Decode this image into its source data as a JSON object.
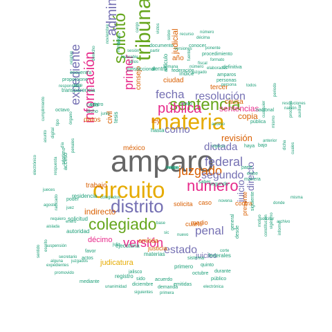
{
  "palette": {
    "green": "#1b9e77",
    "orange": "#d95f02",
    "purple": "#7570b3",
    "pink": "#e7298a",
    "lime": "#66a61e",
    "gold": "#e6ab02",
    "brown": "#a6761d",
    "gray": "#666666"
  },
  "words": [
    {
      "text": "amparo",
      "color": "gray"
    },
    {
      "text": "circuito",
      "color": "gold"
    },
    {
      "text": "materia",
      "color": "gold"
    },
    {
      "text": "tribunal",
      "color": "lime"
    },
    {
      "text": "sentencia",
      "color": "lime"
    },
    {
      "text": "distrito",
      "color": "purple"
    },
    {
      "text": "colegiado",
      "color": "lime"
    },
    {
      "text": "pública",
      "color": "pink"
    },
    {
      "text": "juzgado",
      "color": "orange"
    },
    {
      "text": "número",
      "color": "pink"
    },
    {
      "text": "solicitó",
      "color": "lime"
    },
    {
      "text": "información",
      "color": "pink"
    },
    {
      "text": "administrativa",
      "color": "purple"
    },
    {
      "text": "expediente",
      "color": "purple"
    },
    {
      "text": "versión",
      "color": "pink"
    },
    {
      "text": "primer",
      "color": "pink"
    },
    {
      "text": "fecha",
      "color": "purple"
    },
    {
      "text": "federal",
      "color": "purple"
    },
    {
      "text": "estado",
      "color": "purple"
    },
    {
      "text": "penal",
      "color": "purple"
    },
    {
      "text": "resolución",
      "color": "purple"
    },
    {
      "text": "segundo",
      "color": "purple"
    },
    {
      "text": "dictada",
      "color": "purple"
    },
    {
      "text": "como",
      "color": "purple"
    },
    {
      "text": "juicio",
      "color": "purple"
    },
    {
      "text": "directo",
      "color": "purple"
    },
    {
      "text": "revisión",
      "color": "orange"
    },
    {
      "text": "copia",
      "color": "orange"
    },
    {
      "text": "sentencias",
      "color": "pink"
    },
    {
      "text": "indirecto",
      "color": "orange"
    },
    {
      "text": "judicial",
      "color": "orange"
    },
    {
      "text": "juicios",
      "color": "purple"
    },
    {
      "text": "civil",
      "color": "orange"
    },
    {
      "text": "décimo",
      "color": "pink"
    },
    {
      "text": "judicatura",
      "color": "gold"
    },
    {
      "text": "méxico",
      "color": "orange"
    },
    {
      "text": "datos",
      "color": "orange"
    },
    {
      "text": "trabajo",
      "color": "orange"
    },
    {
      "text": "consejo",
      "color": "orange"
    },
    {
      "text": "ciudad",
      "color": "orange"
    },
    {
      "text": "año",
      "color": "orange"
    },
    {
      "text": "tercer",
      "color": "orange"
    },
    {
      "text": "causa",
      "color": "orange"
    },
    {
      "text": "ley",
      "color": "orange"
    },
    {
      "text": "caso",
      "color": "orange"
    },
    {
      "text": "contra",
      "color": "orange"
    },
    {
      "text": "solicita",
      "color": "orange"
    },
    {
      "text": "medio",
      "color": "orange"
    },
    {
      "text": "presente",
      "color": "orange"
    },
    {
      "text": "justicia",
      "color": "orange"
    },
    {
      "text": "cuarto",
      "color": "orange"
    },
    {
      "text": "emitida",
      "color": "orange"
    },
    {
      "text": "dentro",
      "color": "green"
    },
    {
      "text": "artículo",
      "color": "green"
    },
    {
      "text": "índice",
      "color": "green"
    },
    {
      "text": "cada",
      "color": "green"
    },
    {
      "text": "tesis",
      "color": "green"
    },
    {
      "text": "transparencia",
      "color": "green"
    },
    {
      "text": "acceso",
      "color": "green"
    },
    {
      "text": "residencia",
      "color": "green"
    },
    {
      "text": "solicitud",
      "color": "green"
    },
    {
      "text": "autoridad",
      "color": "green"
    },
    {
      "text": "ejecutoria",
      "color": "green"
    },
    {
      "text": "materias",
      "color": "green"
    },
    {
      "text": "registro",
      "color": "green"
    },
    {
      "text": "federales",
      "color": "green"
    },
    {
      "text": "primero",
      "color": "green"
    },
    {
      "text": "hasta",
      "color": "green"
    },
    {
      "text": "segundo",
      "color": "green"
    },
    {
      "text": "saber",
      "color": "green"
    },
    {
      "text": "haya",
      "color": "green"
    },
    {
      "text": "parte",
      "color": "green"
    },
    {
      "text": "manera",
      "color": "green"
    },
    {
      "text": "entre",
      "color": "green"
    },
    {
      "text": "bajo",
      "color": "green"
    },
    {
      "text": "siguiente",
      "color": "green"
    },
    {
      "text": "general",
      "color": "green"
    },
    {
      "text": "desde",
      "color": "green"
    },
    {
      "text": "sistema",
      "color": "green"
    },
    {
      "text": "quinto",
      "color": "green"
    },
    {
      "text": "pública",
      "color": "green"
    },
    {
      "text": "nacional",
      "color": "green"
    },
    {
      "text": "sexto",
      "color": "green"
    },
    {
      "text": "jurisdiccional",
      "color": "green"
    },
    {
      "text": "documento",
      "color": "green"
    },
    {
      "text": "proporcione",
      "color": "green"
    },
    {
      "text": "encuentra",
      "color": "green"
    },
    {
      "text": "octavo",
      "color": "green"
    },
    {
      "text": "centro",
      "color": "green"
    },
    {
      "text": "dicho",
      "color": "green"
    },
    {
      "text": "séptimo",
      "color": "green"
    },
    {
      "text": "poder",
      "color": "green"
    },
    {
      "text": "actos",
      "color": "green"
    },
    {
      "text": "favor",
      "color": "green"
    },
    {
      "text": "mediante",
      "color": "green"
    },
    {
      "text": "diciembre",
      "color": "green"
    },
    {
      "text": "demanda",
      "color": "green"
    },
    {
      "text": "acuerdo",
      "color": "green"
    },
    {
      "text": "sido",
      "color": "green"
    },
    {
      "text": "jalisco",
      "color": "green"
    },
    {
      "text": "durante",
      "color": "green"
    },
    {
      "text": "octubre",
      "color": "green"
    },
    {
      "text": "emitidas",
      "color": "green"
    },
    {
      "text": "público",
      "color": "green"
    },
    {
      "text": "federación",
      "color": "green"
    },
    {
      "text": "personas",
      "color": "green"
    },
    {
      "text": "amparos",
      "color": "green"
    },
    {
      "text": "definitiva",
      "color": "green"
    },
    {
      "text": "procedimiento",
      "color": "green"
    },
    {
      "text": "conocer",
      "color": "green"
    },
    {
      "text": "persona",
      "color": "green"
    },
    {
      "text": "sesión",
      "color": "green"
    },
    {
      "text": "partir",
      "color": "green"
    },
    {
      "text": "años",
      "color": "green"
    },
    {
      "text": "derecho",
      "color": "green"
    },
    {
      "text": "agosto",
      "color": "green"
    },
    {
      "text": "jueces",
      "color": "green"
    },
    {
      "text": "enero",
      "color": "green"
    },
    {
      "text": "julio",
      "color": "green"
    },
    {
      "text": "juez",
      "color": "green"
    },
    {
      "text": "cargo",
      "color": "green"
    },
    {
      "text": "expedientes",
      "color": "green"
    },
    {
      "text": "suspensión",
      "color": "green"
    },
    {
      "text": "promovido",
      "color": "green"
    },
    {
      "text": "unanimidad",
      "color": "green"
    },
    {
      "text": "siguientes",
      "color": "green"
    },
    {
      "text": "primera",
      "color": "green"
    },
    {
      "text": "electrónica",
      "color": "green"
    },
    {
      "text": "secretario",
      "color": "green"
    },
    {
      "text": "alguna",
      "color": "green"
    },
    {
      "text": "juzgados",
      "color": "green"
    },
    {
      "text": "aislada",
      "color": "green"
    },
    {
      "text": "requiero",
      "color": "green"
    },
    {
      "text": "radicado",
      "color": "green"
    },
    {
      "text": "escrito",
      "color": "green"
    },
    {
      "text": "sentido",
      "color": "green"
    },
    {
      "text": "respuesta",
      "color": "green"
    },
    {
      "text": "electrónico",
      "color": "green"
    },
    {
      "text": "cumplimiento",
      "color": "green"
    },
    {
      "text": "responsable",
      "color": "green"
    },
    {
      "text": "digital",
      "color": "green"
    },
    {
      "text": "relativo",
      "color": "green"
    },
    {
      "text": "constitución",
      "color": "green"
    },
    {
      "text": "vigésimo",
      "color": "green"
    },
    {
      "text": "informe",
      "color": "green"
    },
    {
      "text": "motivo",
      "color": "green"
    },
    {
      "text": "donde",
      "color": "green"
    },
    {
      "text": "archivo",
      "color": "green"
    },
    {
      "text": "solicitar",
      "color": "green"
    },
    {
      "text": "misma",
      "color": "green"
    },
    {
      "text": "nación",
      "color": "green"
    },
    {
      "text": "procesos",
      "color": "green"
    },
    {
      "text": "auxiliar",
      "color": "green"
    },
    {
      "text": "periodo",
      "color": "green"
    },
    {
      "text": "mismo",
      "color": "green"
    },
    {
      "text": "resoluciones",
      "color": "green"
    },
    {
      "text": "todos",
      "color": "green"
    },
    {
      "text": "junio",
      "color": "green"
    },
    {
      "text": "noviembre",
      "color": "green"
    },
    {
      "text": "ingreso",
      "color": "green"
    },
    {
      "text": "anterior",
      "color": "green"
    },
    {
      "text": "novena",
      "color": "green"
    },
    {
      "text": "corte",
      "color": "green"
    },
    {
      "text": "nuevo",
      "color": "green"
    },
    {
      "text": "base",
      "color": "green"
    },
    {
      "text": "dicha",
      "color": "green"
    },
    {
      "text": "cuales",
      "color": "green"
    },
    {
      "text": "cualquier",
      "color": "green"
    },
    {
      "text": "colegiados",
      "color": "green"
    },
    {
      "text": "sic",
      "color": "green"
    },
    {
      "text": "día",
      "color": "green"
    },
    {
      "text": "delito",
      "color": "green"
    },
    {
      "text": "asunto",
      "color": "green"
    },
    {
      "text": "sobre",
      "color": "green"
    },
    {
      "text": "fuente",
      "color": "green"
    },
    {
      "text": "recurso",
      "color": "green"
    },
    {
      "text": "través",
      "color": "green"
    },
    {
      "text": "tipo",
      "color": "green"
    },
    {
      "text": "penales",
      "color": "green"
    },
    {
      "text": "órgano",
      "color": "green"
    },
    {
      "text": "remitido",
      "color": "green"
    },
    {
      "text": "vistos",
      "color": "green"
    },
    {
      "text": "favorable",
      "color": "green"
    },
    {
      "text": "formato",
      "color": "green"
    },
    {
      "text": "número",
      "color": "green"
    },
    {
      "text": "versiones",
      "color": "green"
    },
    {
      "text": "juzgado",
      "color": "green"
    },
    {
      "text": "elaboradas",
      "color": "green"
    },
    {
      "text": "número",
      "color": "green"
    },
    {
      "text": "semana",
      "color": "green"
    },
    {
      "text": "acceso",
      "color": "green"
    },
    {
      "text": "ponente",
      "color": "green"
    },
    {
      "text": "fiscal",
      "color": "green"
    },
    {
      "text": "décima",
      "color": "green"
    },
    {
      "text": "hechos",
      "color": "green"
    },
    {
      "text": "mayo",
      "color": "green"
    },
    {
      "text": "mérito",
      "color": "green"
    },
    {
      "text": "tiempo",
      "color": "green"
    }
  ]
}
